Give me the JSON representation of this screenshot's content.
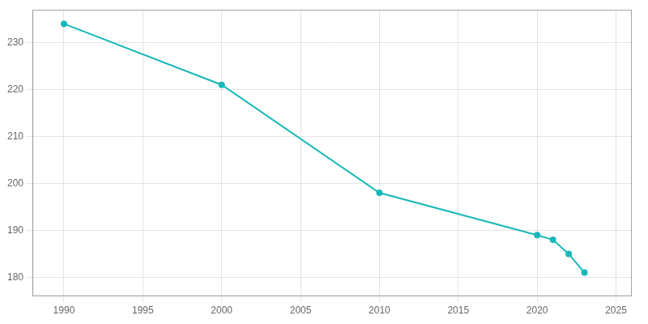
{
  "chart_data": {
    "type": "line",
    "x": [
      1990,
      2000,
      2010,
      2020,
      2021,
      2022,
      2023
    ],
    "values": [
      234,
      221,
      198,
      189,
      188,
      185,
      181
    ],
    "color": "#17b8b8",
    "marker": "o",
    "xlim": [
      1988,
      2026
    ],
    "xticks": [
      1990,
      1995,
      2000,
      2005,
      2010,
      2015,
      2020,
      2025
    ],
    "ylim": [
      176,
      237
    ],
    "yticks": [
      180,
      190,
      200,
      210,
      220,
      230
    ],
    "grid": true
  }
}
